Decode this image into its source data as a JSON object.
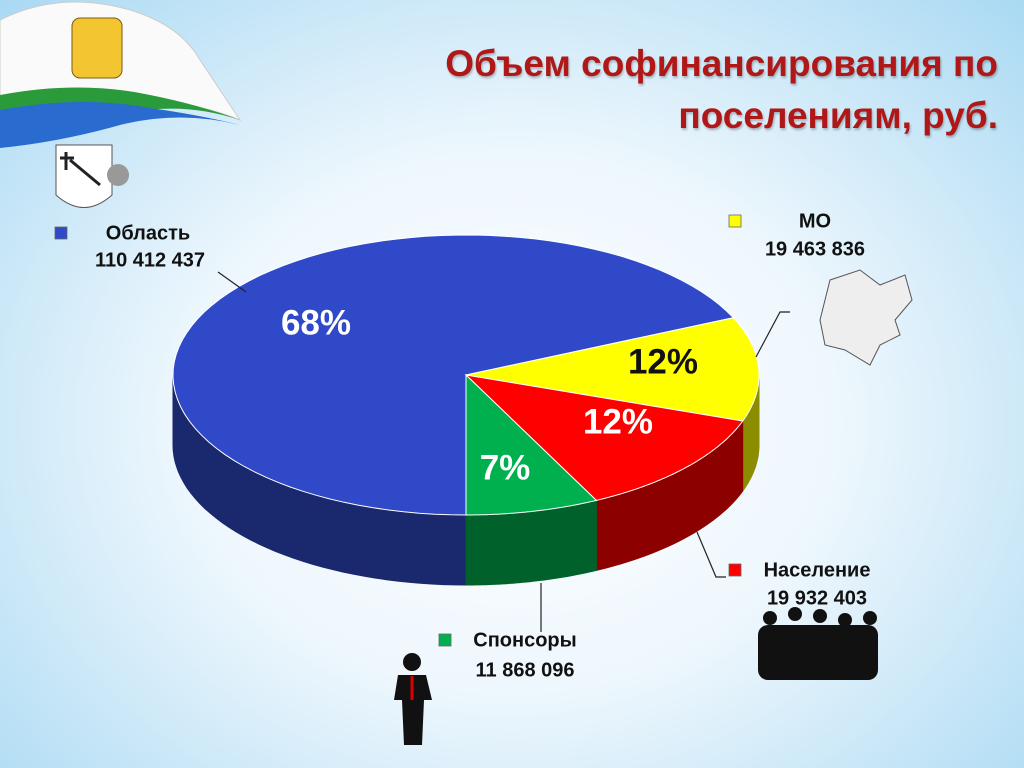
{
  "chart_data": {
    "type": "pie",
    "title": "Объем софинансирования по поселениям, руб.",
    "categories": [
      "Область",
      "МО",
      "Население",
      "Спонсоры"
    ],
    "values": [
      110412437,
      19463836,
      19932403,
      11868096
    ],
    "value_labels": [
      "110 412 437",
      "19 463 836",
      "19 932 403",
      "11 868 096"
    ],
    "percentages": [
      68,
      12,
      12,
      7
    ],
    "percentage_labels": [
      "68%",
      "12%",
      "12%",
      "7%"
    ],
    "colors": [
      "#3049c8",
      "#ffff00",
      "#ff0000",
      "#00b04f"
    ]
  }
}
